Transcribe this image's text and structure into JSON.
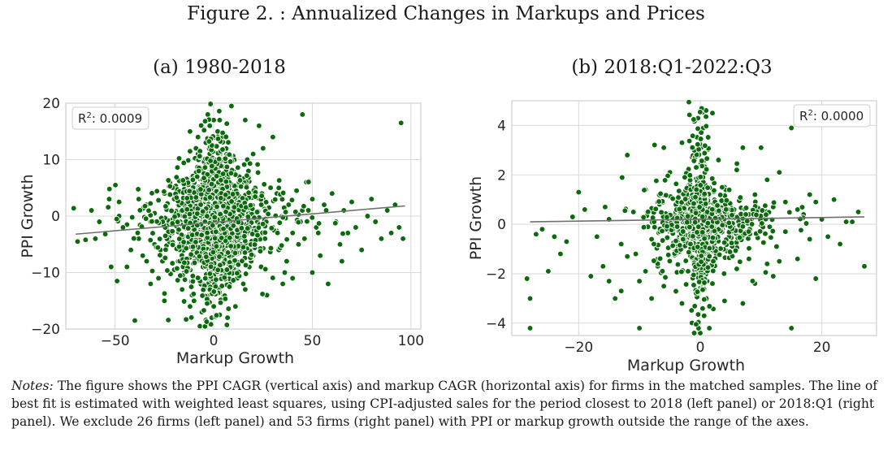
{
  "figure": {
    "title": "Figure 2. : Annualized Changes in Markups and Prices",
    "notes_lead": "Notes:",
    "notes_text": " The figure shows the PPI CAGR (vertical axis) and markup CAGR (horizontal axis) for firms in the matched samples. The line of best fit is estimated with weighted least squares, using CPI-adjusted sales for the period closest to 2018 (left panel) or 2018:Q1 (right panel). We exclude 26 firms (left panel) and 53 firms (right panel) with PPI or markup growth outside the range of the axes."
  },
  "colors": {
    "points": "#0b6a0b",
    "fit_line": "#707070",
    "grid": "#d9d9d9"
  },
  "chart_data": [
    {
      "type": "scatter",
      "title": "(a) 1980-2018",
      "xlabel": "Markup Growth",
      "ylabel": "PPI Growth",
      "xlim": [
        -75,
        105
      ],
      "ylim": [
        -20,
        20
      ],
      "xticks": [
        -50,
        0,
        50,
        100
      ],
      "yticks": [
        -20,
        -10,
        0,
        10,
        20
      ],
      "annotation": {
        "prefix": "R",
        "sup": "2",
        "suffix": ": 0.0009",
        "placement": "top-left"
      },
      "fit_line": {
        "x": [
          -70,
          97
        ],
        "y": [
          -3.2,
          1.8
        ]
      },
      "grid": true,
      "points": [
        [
          -71,
          1.4
        ],
        [
          -65,
          -4.2
        ],
        [
          -55,
          -3.2
        ],
        [
          -52,
          -9
        ],
        [
          -50,
          5.5
        ],
        [
          -49,
          -11.5
        ],
        [
          -48,
          2.5
        ],
        [
          -44,
          -1.5
        ],
        [
          -40,
          -18.5
        ],
        [
          -38,
          -4
        ],
        [
          -36,
          1.5
        ],
        [
          -34,
          -8
        ],
        [
          -32,
          -12
        ],
        [
          -30,
          0.5
        ],
        [
          -28,
          2.8
        ],
        [
          -27,
          -6
        ],
        [
          -25,
          -15
        ],
        [
          -23,
          -18.4
        ],
        [
          -22,
          1
        ],
        [
          -21,
          -3
        ],
        [
          -20,
          -9.5
        ],
        [
          -18,
          4.5
        ],
        [
          -17,
          -1
        ],
        [
          -16,
          -13
        ],
        [
          -15,
          2
        ],
        [
          -14,
          -18.3
        ],
        [
          -13,
          -5
        ],
        [
          -12,
          0.5
        ],
        [
          -11,
          7
        ],
        [
          -10,
          -2.5
        ],
        [
          -9,
          12
        ],
        [
          -8,
          -7
        ],
        [
          -7,
          3
        ],
        [
          -6,
          -14
        ],
        [
          -5,
          10
        ],
        [
          -5,
          -1
        ],
        [
          -4,
          -18.4
        ],
        [
          -3,
          5
        ],
        [
          -3,
          -9
        ],
        [
          -2,
          16
        ],
        [
          -2,
          -4
        ],
        [
          -1,
          1.5
        ],
        [
          -1,
          -12
        ],
        [
          0,
          17
        ],
        [
          0,
          -16
        ],
        [
          0,
          -3
        ],
        [
          0,
          0.5
        ],
        [
          1,
          8
        ],
        [
          1,
          -6
        ],
        [
          2,
          -10
        ],
        [
          2,
          3.5
        ],
        [
          3,
          -17.5
        ],
        [
          3,
          -1.5
        ],
        [
          4,
          14
        ],
        [
          4,
          6
        ],
        [
          5,
          -14
        ],
        [
          5,
          0
        ],
        [
          6,
          -4
        ],
        [
          7,
          9
        ],
        [
          8,
          -8
        ],
        [
          9,
          19.5
        ],
        [
          10,
          -2
        ],
        [
          11,
          4
        ],
        [
          12,
          -11
        ],
        [
          13,
          7
        ],
        [
          14,
          -5
        ],
        [
          15,
          1
        ],
        [
          16,
          -13
        ],
        [
          17,
          10
        ],
        [
          18,
          -3
        ],
        [
          19,
          2
        ],
        [
          20,
          -7
        ],
        [
          21,
          5
        ],
        [
          22,
          -1
        ],
        [
          23,
          16
        ],
        [
          24,
          -9
        ],
        [
          25,
          3
        ],
        [
          26,
          -4
        ],
        [
          27,
          -14
        ],
        [
          28,
          1.5
        ],
        [
          30,
          -2
        ],
        [
          32,
          4
        ],
        [
          33,
          -6
        ],
        [
          35,
          0
        ],
        [
          36,
          -10
        ],
        [
          38,
          2
        ],
        [
          40,
          -3
        ],
        [
          42,
          4.5
        ],
        [
          44,
          -1
        ],
        [
          45,
          18
        ],
        [
          46,
          -4
        ],
        [
          48,
          1
        ],
        [
          50,
          3
        ],
        [
          52,
          -2
        ],
        [
          54,
          -7
        ],
        [
          56,
          2
        ],
        [
          58,
          -12
        ],
        [
          60,
          4
        ],
        [
          62,
          -1
        ],
        [
          64,
          -5
        ],
        [
          66,
          1
        ],
        [
          68,
          -3
        ],
        [
          70,
          2.5
        ],
        [
          72,
          -2
        ],
        [
          75,
          -6
        ],
        [
          78,
          0
        ],
        [
          80,
          3
        ],
        [
          82,
          -1
        ],
        [
          85,
          -4
        ],
        [
          88,
          1
        ],
        [
          90,
          -3
        ],
        [
          92,
          2
        ],
        [
          94,
          -2
        ],
        [
          95,
          16.5
        ],
        [
          96,
          -4
        ],
        [
          -18,
          -8
        ],
        [
          -14,
          6
        ],
        [
          -10,
          -15
        ],
        [
          -8,
          11
        ],
        [
          -6,
          -17
        ],
        [
          -4,
          13
        ],
        [
          -2,
          -11
        ],
        [
          2,
          15
        ],
        [
          4,
          -15
        ],
        [
          6,
          12
        ],
        [
          8,
          -12
        ],
        [
          10,
          8
        ],
        [
          12,
          -9
        ],
        [
          14,
          6
        ],
        [
          -12,
          -16
        ],
        [
          -16,
          -4
        ],
        [
          -20,
          3
        ],
        [
          -24,
          -2
        ],
        [
          -26,
          -8
        ],
        [
          -30,
          -5
        ],
        [
          -34,
          2
        ],
        [
          -42,
          -6
        ],
        [
          -46,
          -2
        ],
        [
          -58,
          -1
        ],
        [
          -62,
          1
        ],
        [
          -60,
          -4
        ],
        [
          -3,
          18
        ],
        [
          3,
          17
        ],
        [
          -1,
          -18
        ],
        [
          1,
          -17.8
        ],
        [
          20,
          11
        ],
        [
          25,
          12
        ],
        [
          30,
          14
        ],
        [
          16,
          17
        ],
        [
          -12,
          15
        ],
        [
          -8,
          14
        ],
        [
          35,
          -12
        ],
        [
          40,
          -11
        ],
        [
          50,
          -10
        ],
        [
          -15,
          -10
        ],
        [
          -25,
          4
        ],
        [
          -28,
          -11
        ],
        [
          33,
          5
        ],
        [
          37,
          -8
        ],
        [
          43,
          -5
        ],
        [
          47,
          6
        ],
        [
          53,
          -3
        ],
        [
          57,
          1
        ],
        [
          65,
          -8
        ],
        [
          -38,
          3
        ],
        [
          -36,
          -7
        ],
        [
          -32,
          -1
        ],
        [
          -44,
          -9
        ],
        [
          -48,
          0
        ],
        [
          -53,
          3
        ],
        [
          7,
          -18
        ],
        [
          -7,
          -19.5
        ],
        [
          11,
          -16
        ],
        [
          -11,
          -14
        ],
        [
          15,
          -12
        ],
        [
          19,
          -8
        ]
      ],
      "clusters": [
        {
          "cx": 0,
          "cy": -1,
          "sx": 11,
          "sy": 5,
          "n": 1100
        },
        {
          "cx": 0,
          "cy": 0,
          "sx": 4,
          "sy": 9,
          "n": 420
        },
        {
          "cx": 4,
          "cy": 0,
          "sx": 22,
          "sy": 3,
          "n": 220
        }
      ]
    },
    {
      "type": "scatter",
      "title": "(b) 2018:Q1-2022:Q3",
      "xlabel": "Markup Growth",
      "ylabel": "PPI Growth",
      "xlim": [
        -31,
        29
      ],
      "ylim": [
        -4.5,
        5
      ],
      "xticks": [
        -20,
        0,
        20
      ],
      "yticks": [
        -4,
        -2,
        0,
        2,
        4
      ],
      "annotation": {
        "prefix": "R",
        "sup": "2",
        "suffix": ": 0.0000",
        "placement": "top-right"
      },
      "fit_line": {
        "x": [
          -28,
          27
        ],
        "y": [
          0.1,
          0.3
        ]
      },
      "grid": true,
      "points": [
        [
          -28.5,
          -2.2
        ],
        [
          -28,
          -3
        ],
        [
          -28,
          -4.2
        ],
        [
          -26,
          -0.2
        ],
        [
          -25,
          -1.9
        ],
        [
          -24,
          -0.5
        ],
        [
          -20,
          1.3
        ],
        [
          -19,
          0.6
        ],
        [
          -18,
          -2.1
        ],
        [
          -17,
          -0.5
        ],
        [
          -16,
          -1.7
        ],
        [
          -15,
          0.2
        ],
        [
          -14,
          -3
        ],
        [
          -13,
          -0.8
        ],
        [
          -12,
          2.8
        ],
        [
          -12,
          -1.3
        ],
        [
          -11,
          0.5
        ],
        [
          -10,
          -2.3
        ],
        [
          -10,
          -4.2
        ],
        [
          -9,
          1.4
        ],
        [
          -8,
          -0.6
        ],
        [
          -7,
          -1.7
        ],
        [
          -7,
          0.9
        ],
        [
          -6,
          -2.5
        ],
        [
          -5,
          2.1
        ],
        [
          -5,
          -0.3
        ],
        [
          -4,
          -1.2
        ],
        [
          -4,
          0.8
        ],
        [
          -3,
          3.3
        ],
        [
          -3,
          -3.2
        ],
        [
          -2,
          -1.9
        ],
        [
          -2,
          1.6
        ],
        [
          -1,
          -4.4
        ],
        [
          -1,
          -0.7
        ],
        [
          0,
          4.6
        ],
        [
          0,
          -4.4
        ],
        [
          0.5,
          3.9
        ],
        [
          1,
          -3
        ],
        [
          1.5,
          -4.2
        ],
        [
          2,
          4.5
        ],
        [
          2,
          -2.4
        ],
        [
          3,
          2.6
        ],
        [
          3,
          -1.1
        ],
        [
          4,
          -3.1
        ],
        [
          4,
          1.5
        ],
        [
          5,
          -0.5
        ],
        [
          6,
          2.2
        ],
        [
          6,
          -1.8
        ],
        [
          7,
          3.1
        ],
        [
          7,
          -3.2
        ],
        [
          8,
          0.4
        ],
        [
          8,
          -1.4
        ],
        [
          9,
          1.2
        ],
        [
          9,
          -2.4
        ],
        [
          10,
          3.1
        ],
        [
          10,
          -0.3
        ],
        [
          11,
          -1.6
        ],
        [
          12,
          0.7
        ],
        [
          12,
          -2.1
        ],
        [
          13,
          2.1
        ],
        [
          14,
          -0.3
        ],
        [
          14,
          0.9
        ],
        [
          15,
          3.9
        ],
        [
          15,
          -4.2
        ],
        [
          16,
          -1.4
        ],
        [
          17,
          0.4
        ],
        [
          18,
          -0.6
        ],
        [
          18,
          1.2
        ],
        [
          19,
          -2.2
        ],
        [
          20,
          0.2
        ],
        [
          21,
          -0.5
        ],
        [
          22,
          1
        ],
        [
          23,
          -0.8
        ],
        [
          24,
          0.1
        ],
        [
          26,
          0.5
        ],
        [
          27,
          -1.7
        ],
        [
          -22,
          -0.7
        ],
        [
          -21,
          0.3
        ],
        [
          -23,
          -1.2
        ],
        [
          -15,
          -2.3
        ],
        [
          -8,
          -3
        ],
        [
          -6,
          3.1
        ],
        [
          -9,
          -1.9
        ],
        [
          13,
          -1.5
        ],
        [
          11,
          1.8
        ],
        [
          16,
          0.6
        ],
        [
          19,
          0.9
        ],
        [
          25,
          0.1
        ],
        [
          -27,
          -0.4
        ],
        [
          -13,
          -2.7
        ]
      ],
      "clusters": [
        {
          "cx": 0,
          "cy": 0,
          "sx": 3.8,
          "sy": 0.9,
          "n": 520
        },
        {
          "cx": 0,
          "cy": 0.3,
          "sx": 0.9,
          "sy": 2.2,
          "n": 280
        },
        {
          "cx": 2,
          "cy": 0.3,
          "sx": 6,
          "sy": 0.45,
          "n": 130
        }
      ]
    }
  ]
}
